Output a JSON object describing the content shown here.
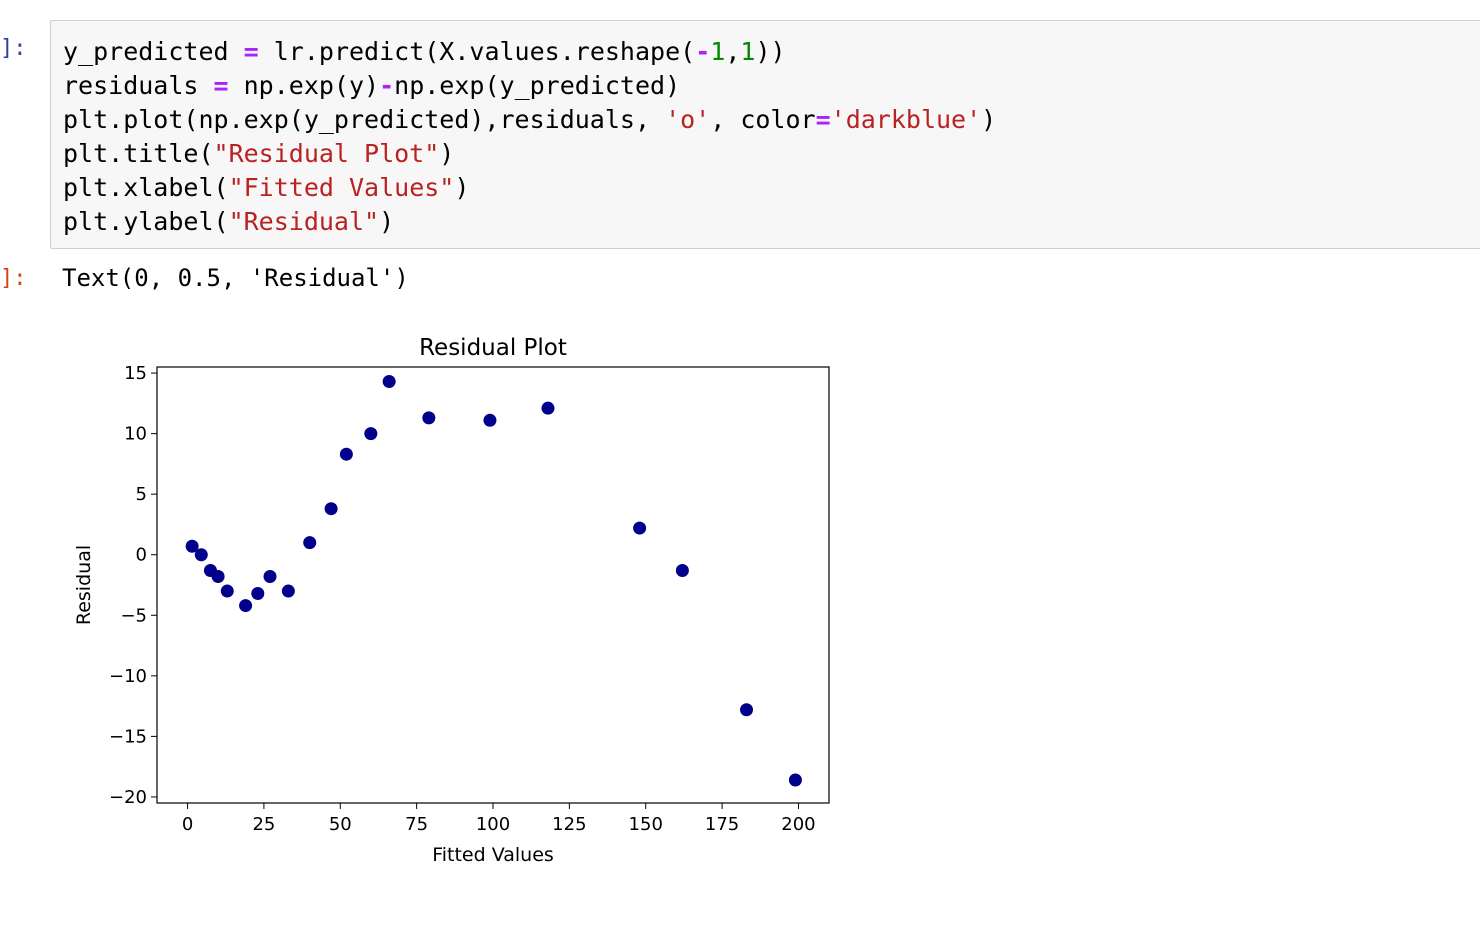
{
  "notebook": {
    "in_prompt": "]:",
    "out_prompt": "]:",
    "code_lines": [
      [
        {
          "t": "y_predicted "
        },
        {
          "t": "=",
          "c": "op"
        },
        {
          "t": " lr.predict(X.values.reshape("
        },
        {
          "t": "-",
          "c": "op"
        },
        {
          "t": "1",
          "c": "num"
        },
        {
          "t": ","
        },
        {
          "t": "1",
          "c": "num"
        },
        {
          "t": "))"
        }
      ],
      [
        {
          "t": "residuals "
        },
        {
          "t": "=",
          "c": "op"
        },
        {
          "t": " np.exp(y)"
        },
        {
          "t": "-",
          "c": "op"
        },
        {
          "t": "np.exp(y_predicted)"
        }
      ],
      [
        {
          "t": "plt.plot(np.exp(y_predicted),residuals, "
        },
        {
          "t": "'o'",
          "c": "str"
        },
        {
          "t": ", color"
        },
        {
          "t": "=",
          "c": "op"
        },
        {
          "t": "'darkblue'",
          "c": "str"
        },
        {
          "t": ")"
        }
      ],
      [
        {
          "t": "plt.title("
        },
        {
          "t": "\"Residual Plot\"",
          "c": "str"
        },
        {
          "t": ")"
        }
      ],
      [
        {
          "t": "plt.xlabel("
        },
        {
          "t": "\"Fitted Values\"",
          "c": "str"
        },
        {
          "t": ")"
        }
      ],
      [
        {
          "t": "plt.ylabel("
        },
        {
          "t": "\"Residual\"",
          "c": "str"
        },
        {
          "t": ")"
        }
      ]
    ],
    "output_text": "Text(0, 0.5, 'Residual')",
    "colors": {
      "operator": "#aa22ff",
      "number": "#008800",
      "string": "#ba2121",
      "in_prompt": "#303f9f",
      "out_prompt": "#d84315",
      "marker": "#00008b"
    }
  },
  "chart_data": {
    "type": "scatter",
    "title": "Residual Plot",
    "xlabel": "Fitted Values",
    "ylabel": "Residual",
    "xlim": [
      -10,
      210
    ],
    "ylim": [
      -20.5,
      15.5
    ],
    "xticks": [
      0,
      25,
      50,
      75,
      100,
      125,
      150,
      175,
      200
    ],
    "yticks": [
      15,
      10,
      5,
      0,
      -5,
      -10,
      -15,
      -20
    ],
    "xtick_labels": [
      "0",
      "25",
      "50",
      "75",
      "100",
      "125",
      "150",
      "175",
      "200"
    ],
    "ytick_labels": [
      "15",
      "10",
      "5",
      "0",
      "−5",
      "−10",
      "−15",
      "−20"
    ],
    "marker_color": "#00008b",
    "grid": false,
    "points": [
      {
        "x": 1.5,
        "y": 0.7
      },
      {
        "x": 4.5,
        "y": 0.0
      },
      {
        "x": 7.5,
        "y": -1.3
      },
      {
        "x": 10,
        "y": -1.8
      },
      {
        "x": 13,
        "y": -3.0
      },
      {
        "x": 19,
        "y": -4.2
      },
      {
        "x": 23,
        "y": -3.2
      },
      {
        "x": 27,
        "y": -1.8
      },
      {
        "x": 33,
        "y": -3.0
      },
      {
        "x": 40,
        "y": 1.0
      },
      {
        "x": 47,
        "y": 3.8
      },
      {
        "x": 52,
        "y": 8.3
      },
      {
        "x": 60,
        "y": 10.0
      },
      {
        "x": 66,
        "y": 14.3
      },
      {
        "x": 79,
        "y": 11.3
      },
      {
        "x": 99,
        "y": 11.1
      },
      {
        "x": 118,
        "y": 12.1
      },
      {
        "x": 148,
        "y": 2.2
      },
      {
        "x": 162,
        "y": -1.3
      },
      {
        "x": 183,
        "y": -12.8
      },
      {
        "x": 199,
        "y": -18.6
      }
    ]
  }
}
